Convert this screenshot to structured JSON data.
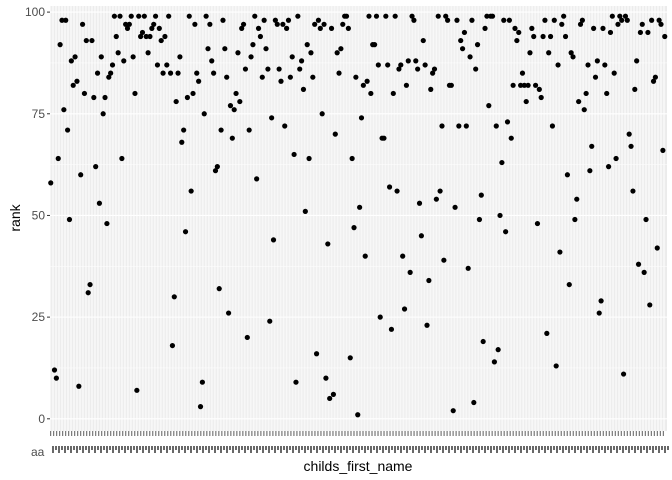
{
  "chart_data": {
    "type": "scatter",
    "xlabel": "childs_first_name",
    "ylabel": "rank",
    "x_tick_first_label": "aa",
    "ylim": [
      -3,
      101.5
    ],
    "y_ticks": [
      0,
      25,
      50,
      75,
      100
    ],
    "x_scale": "categorical",
    "category_count": 410,
    "grid": true,
    "legend": "none",
    "colors": {
      "panel": "#ebebeb",
      "grid": "#ffffff",
      "point": "#000000",
      "tick": "#4d4d4d"
    },
    "points": [
      [
        1,
        58
      ],
      [
        3,
        12
      ],
      [
        4,
        10
      ],
      [
        5,
        64
      ],
      [
        6,
        92
      ],
      [
        7,
        98
      ],
      [
        8,
        76
      ],
      [
        9,
        98
      ],
      [
        10,
        71
      ],
      [
        11,
        49
      ],
      [
        12,
        88
      ],
      [
        13,
        82
      ],
      [
        14,
        89
      ],
      [
        15,
        83
      ],
      [
        16,
        8
      ],
      [
        17,
        60
      ],
      [
        18,
        97
      ],
      [
        19,
        80
      ],
      [
        20,
        93
      ],
      [
        21,
        31
      ],
      [
        22,
        33
      ],
      [
        23,
        93
      ],
      [
        24,
        79
      ],
      [
        25,
        62
      ],
      [
        26,
        85
      ],
      [
        27,
        53
      ],
      [
        28,
        89
      ],
      [
        29,
        75
      ],
      [
        30,
        79
      ],
      [
        31,
        48
      ],
      [
        32,
        84
      ],
      [
        33,
        85
      ],
      [
        34,
        87
      ],
      [
        35,
        99
      ],
      [
        36,
        94
      ],
      [
        37,
        90
      ],
      [
        38,
        99
      ],
      [
        39,
        64
      ],
      [
        40,
        88
      ],
      [
        41,
        97
      ],
      [
        42,
        96
      ],
      [
        43,
        97
      ],
      [
        44,
        99
      ],
      [
        45,
        89
      ],
      [
        46,
        80
      ],
      [
        47,
        7
      ],
      [
        48,
        99
      ],
      [
        49,
        94
      ],
      [
        50,
        95
      ],
      [
        51,
        99
      ],
      [
        52,
        94
      ],
      [
        53,
        90
      ],
      [
        54,
        94
      ],
      [
        55,
        96
      ],
      [
        56,
        97
      ],
      [
        57,
        99
      ],
      [
        58,
        87
      ],
      [
        59,
        96
      ],
      [
        60,
        93
      ],
      [
        61,
        85
      ],
      [
        62,
        94
      ],
      [
        63,
        87
      ],
      [
        64,
        99
      ],
      [
        65,
        85
      ],
      [
        66,
        18
      ],
      [
        67,
        30
      ],
      [
        68,
        78
      ],
      [
        69,
        85
      ],
      [
        70,
        89
      ],
      [
        71,
        68
      ],
      [
        72,
        71
      ],
      [
        73,
        46
      ],
      [
        74,
        79
      ],
      [
        75,
        99
      ],
      [
        76,
        56
      ],
      [
        77,
        80
      ],
      [
        78,
        97
      ],
      [
        79,
        85
      ],
      [
        80,
        83
      ],
      [
        81,
        3
      ],
      [
        82,
        9
      ],
      [
        83,
        75
      ],
      [
        84,
        99
      ],
      [
        85,
        91
      ],
      [
        86,
        97
      ],
      [
        87,
        88
      ],
      [
        88,
        85
      ],
      [
        89,
        61
      ],
      [
        90,
        62
      ],
      [
        91,
        32
      ],
      [
        92,
        71
      ],
      [
        93,
        98
      ],
      [
        94,
        91
      ],
      [
        95,
        84
      ],
      [
        96,
        26
      ],
      [
        97,
        77
      ],
      [
        98,
        69
      ],
      [
        99,
        76
      ],
      [
        100,
        80
      ],
      [
        101,
        90
      ],
      [
        102,
        78
      ],
      [
        103,
        96
      ],
      [
        104,
        97
      ],
      [
        105,
        86
      ],
      [
        106,
        20
      ],
      [
        107,
        71
      ],
      [
        108,
        89
      ],
      [
        109,
        92
      ],
      [
        110,
        99
      ],
      [
        111,
        59
      ],
      [
        112,
        96
      ],
      [
        113,
        94
      ],
      [
        114,
        84
      ],
      [
        115,
        98
      ],
      [
        116,
        91
      ],
      [
        117,
        86
      ],
      [
        118,
        24
      ],
      [
        119,
        74
      ],
      [
        120,
        44
      ],
      [
        121,
        98
      ],
      [
        122,
        97
      ],
      [
        123,
        86
      ],
      [
        124,
        83
      ],
      [
        125,
        97
      ],
      [
        126,
        72
      ],
      [
        127,
        96
      ],
      [
        128,
        98
      ],
      [
        129,
        84
      ],
      [
        130,
        89
      ],
      [
        131,
        65
      ],
      [
        132,
        9
      ],
      [
        133,
        99
      ],
      [
        134,
        86
      ],
      [
        135,
        88
      ],
      [
        136,
        81
      ],
      [
        137,
        51
      ],
      [
        138,
        92
      ],
      [
        139,
        64
      ],
      [
        140,
        90
      ],
      [
        141,
        84
      ],
      [
        142,
        97
      ],
      [
        143,
        16
      ],
      [
        144,
        98
      ],
      [
        145,
        96
      ],
      [
        146,
        75
      ],
      [
        147,
        97
      ],
      [
        148,
        10
      ],
      [
        149,
        43
      ],
      [
        150,
        5
      ],
      [
        151,
        96
      ],
      [
        152,
        6
      ],
      [
        153,
        70
      ],
      [
        154,
        90
      ],
      [
        155,
        85
      ],
      [
        156,
        91
      ],
      [
        157,
        97
      ],
      [
        158,
        99
      ],
      [
        159,
        99
      ],
      [
        160,
        96
      ],
      [
        161,
        15
      ],
      [
        162,
        64
      ],
      [
        163,
        47
      ],
      [
        164,
        84
      ],
      [
        165,
        1
      ],
      [
        166,
        52
      ],
      [
        167,
        74
      ],
      [
        168,
        82
      ],
      [
        169,
        40
      ],
      [
        170,
        83
      ],
      [
        171,
        99
      ],
      [
        172,
        80
      ],
      [
        173,
        92
      ],
      [
        174,
        92
      ],
      [
        175,
        99
      ],
      [
        176,
        87
      ],
      [
        177,
        25
      ],
      [
        178,
        69
      ],
      [
        179,
        69
      ],
      [
        180,
        99
      ],
      [
        181,
        87
      ],
      [
        182,
        57
      ],
      [
        183,
        22
      ],
      [
        184,
        80
      ],
      [
        185,
        99
      ],
      [
        186,
        56
      ],
      [
        187,
        86
      ],
      [
        188,
        87
      ],
      [
        189,
        40
      ],
      [
        190,
        27
      ],
      [
        191,
        82
      ],
      [
        192,
        88
      ],
      [
        193,
        36
      ],
      [
        194,
        99
      ],
      [
        195,
        98
      ],
      [
        196,
        88
      ],
      [
        197,
        86
      ],
      [
        198,
        53
      ],
      [
        199,
        45
      ],
      [
        200,
        93
      ],
      [
        201,
        87
      ],
      [
        202,
        23
      ],
      [
        203,
        34
      ],
      [
        204,
        81
      ],
      [
        205,
        85
      ],
      [
        206,
        86
      ],
      [
        207,
        54
      ],
      [
        208,
        99
      ],
      [
        209,
        56
      ],
      [
        210,
        72
      ],
      [
        211,
        39
      ],
      [
        212,
        99
      ],
      [
        213,
        98
      ],
      [
        214,
        82
      ],
      [
        215,
        82
      ],
      [
        216,
        2
      ],
      [
        217,
        52
      ],
      [
        218,
        98
      ],
      [
        219,
        72
      ],
      [
        220,
        93
      ],
      [
        221,
        91
      ],
      [
        222,
        95
      ],
      [
        223,
        72
      ],
      [
        224,
        37
      ],
      [
        225,
        89
      ],
      [
        226,
        98
      ],
      [
        227,
        4
      ],
      [
        228,
        86
      ],
      [
        229,
        92
      ],
      [
        230,
        49
      ],
      [
        231,
        55
      ],
      [
        232,
        19
      ],
      [
        233,
        96
      ],
      [
        234,
        99
      ],
      [
        235,
        77
      ],
      [
        236,
        99
      ],
      [
        237,
        99
      ],
      [
        238,
        14
      ],
      [
        239,
        72
      ],
      [
        240,
        17
      ],
      [
        241,
        50
      ],
      [
        242,
        63
      ],
      [
        243,
        98
      ],
      [
        244,
        46
      ],
      [
        245,
        73
      ],
      [
        246,
        98
      ],
      [
        247,
        69
      ],
      [
        248,
        82
      ],
      [
        249,
        96
      ],
      [
        250,
        93
      ],
      [
        251,
        95
      ],
      [
        252,
        82
      ],
      [
        253,
        85
      ],
      [
        254,
        82
      ],
      [
        255,
        78
      ],
      [
        256,
        82
      ],
      [
        257,
        90
      ],
      [
        258,
        96
      ],
      [
        259,
        94
      ],
      [
        260,
        82
      ],
      [
        261,
        48
      ],
      [
        262,
        81
      ],
      [
        263,
        79
      ],
      [
        264,
        94
      ],
      [
        265,
        98
      ],
      [
        266,
        21
      ],
      [
        267,
        90
      ],
      [
        268,
        94
      ],
      [
        269,
        72
      ],
      [
        270,
        98
      ],
      [
        271,
        13
      ],
      [
        272,
        87
      ],
      [
        273,
        41
      ],
      [
        274,
        97
      ],
      [
        275,
        99
      ],
      [
        276,
        94
      ],
      [
        277,
        60
      ],
      [
        278,
        33
      ],
      [
        279,
        90
      ],
      [
        280,
        89
      ],
      [
        281,
        49
      ],
      [
        282,
        54
      ],
      [
        283,
        78
      ],
      [
        284,
        97
      ],
      [
        285,
        98
      ],
      [
        286,
        76
      ],
      [
        287,
        80
      ],
      [
        288,
        87
      ],
      [
        289,
        61
      ],
      [
        290,
        67
      ],
      [
        291,
        96
      ],
      [
        292,
        84
      ],
      [
        293,
        88
      ],
      [
        294,
        26
      ],
      [
        295,
        29
      ],
      [
        296,
        96
      ],
      [
        297,
        87
      ],
      [
        298,
        80
      ],
      [
        299,
        62
      ],
      [
        300,
        95
      ],
      [
        301,
        99
      ],
      [
        302,
        85
      ],
      [
        303,
        64
      ],
      [
        304,
        97
      ],
      [
        305,
        99
      ],
      [
        306,
        98
      ],
      [
        307,
        11
      ],
      [
        308,
        99
      ],
      [
        309,
        98
      ],
      [
        310,
        70
      ],
      [
        311,
        67
      ],
      [
        312,
        56
      ],
      [
        313,
        81
      ],
      [
        314,
        88
      ],
      [
        315,
        38
      ],
      [
        316,
        95
      ],
      [
        317,
        97
      ],
      [
        318,
        36
      ],
      [
        319,
        49
      ],
      [
        320,
        95
      ],
      [
        321,
        28
      ],
      [
        322,
        98
      ],
      [
        323,
        83
      ],
      [
        324,
        84
      ],
      [
        325,
        42
      ],
      [
        326,
        98
      ],
      [
        327,
        97
      ],
      [
        328,
        66
      ],
      [
        329,
        94
      ]
    ]
  }
}
